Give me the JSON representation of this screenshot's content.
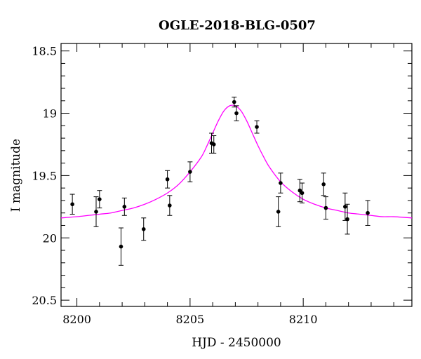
{
  "chart_data": {
    "type": "scatter",
    "title": "OGLE-2018-BLG-0507",
    "xlabel": "HJD - 2450000",
    "ylabel": "I magnitude",
    "xlim": [
      8199.3,
      8214.8
    ],
    "ylim": [
      20.55,
      18.44
    ],
    "y_inverted": true,
    "grid": false,
    "x_major_ticks": [
      8200,
      8205,
      8210
    ],
    "x_tick_labels": [
      "8200",
      "8205",
      "8210"
    ],
    "y_major_ticks": [
      18.5,
      19,
      19.5,
      20,
      20.5
    ],
    "y_tick_labels": [
      "18.5",
      "19",
      "19.5",
      "20",
      "20.5"
    ],
    "series": [
      {
        "kind": "points",
        "color": "#000000",
        "x": [
          8199.8,
          8200.85,
          8201.0,
          8201.95,
          8202.1,
          8202.95,
          8204.0,
          8204.1,
          8205.0,
          8205.95,
          8206.05,
          8206.95,
          8207.05,
          8207.95,
          8208.9,
          8209.0,
          8209.85,
          8209.95,
          8210.9,
          8211.0,
          8211.85,
          8211.95,
          8212.85
        ],
        "y": [
          19.73,
          19.79,
          19.69,
          20.07,
          19.75,
          19.93,
          19.53,
          19.74,
          19.47,
          19.24,
          19.25,
          18.91,
          19.0,
          19.11,
          19.79,
          19.56,
          19.62,
          19.64,
          19.57,
          19.76,
          19.75,
          19.85,
          19.8
        ],
        "yerr": [
          0.08,
          0.12,
          0.07,
          0.15,
          0.07,
          0.09,
          0.07,
          0.08,
          0.08,
          0.08,
          0.07,
          0.04,
          0.06,
          0.05,
          0.12,
          0.08,
          0.09,
          0.08,
          0.09,
          0.09,
          0.11,
          0.12,
          0.1
        ]
      },
      {
        "kind": "model-curve",
        "color": "#ff00ff",
        "x": [
          8199.3,
          8200,
          8200.5,
          8201,
          8201.5,
          8202,
          8202.5,
          8203,
          8203.5,
          8204,
          8204.5,
          8205,
          8205.5,
          8205.75,
          8206,
          8206.25,
          8206.5,
          8206.75,
          8207,
          8207.25,
          8207.5,
          8207.75,
          8208,
          8208.25,
          8208.5,
          8209,
          8209.5,
          8210,
          8210.5,
          8211,
          8211.5,
          8212,
          8212.5,
          8213,
          8213.5,
          8214,
          8214.8
        ],
        "y": [
          19.84,
          19.83,
          19.82,
          19.81,
          19.8,
          19.78,
          19.76,
          19.73,
          19.69,
          19.64,
          19.57,
          19.47,
          19.35,
          19.26,
          19.16,
          19.06,
          18.98,
          18.94,
          18.94,
          18.98,
          19.06,
          19.16,
          19.26,
          19.35,
          19.43,
          19.55,
          19.63,
          19.69,
          19.73,
          19.76,
          19.78,
          19.8,
          19.81,
          19.82,
          19.83,
          19.83,
          19.84
        ]
      }
    ]
  }
}
